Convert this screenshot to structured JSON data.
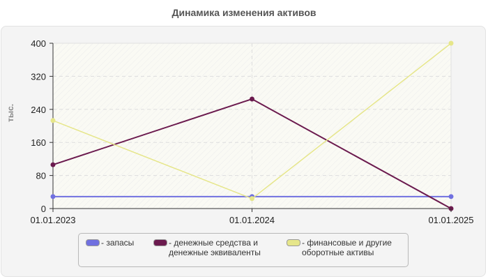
{
  "chart_data": {
    "type": "line",
    "title": "Динамика изменения активов",
    "xlabel": "",
    "ylabel": "тыс.",
    "ylim": [
      0,
      400
    ],
    "yticks": [
      0,
      80,
      160,
      240,
      320,
      400
    ],
    "grid": true,
    "legend_position": "bottom",
    "categories": [
      "01.01.2023",
      "01.01.2024",
      "01.01.2025"
    ],
    "series": [
      {
        "name": "- запасы",
        "color": "#7070e0",
        "values": [
          29,
          29,
          29
        ]
      },
      {
        "name": "- денежные средства и денежные эквиваленты",
        "color": "#6b1a4e",
        "values": [
          106,
          265,
          0
        ]
      },
      {
        "name": "- финансовые и другие оборотные активы",
        "color": "#e6e68a",
        "values": [
          213,
          24,
          400
        ]
      }
    ]
  },
  "legend": {
    "items": [
      {
        "label": "- запасы",
        "color": "#7070e0"
      },
      {
        "label": "- денежные средства и\nденежные эквиваленты",
        "color": "#6b1a4e"
      },
      {
        "label": "- финансовые и другие\nоборотные активы",
        "color": "#e6e68a"
      }
    ]
  }
}
